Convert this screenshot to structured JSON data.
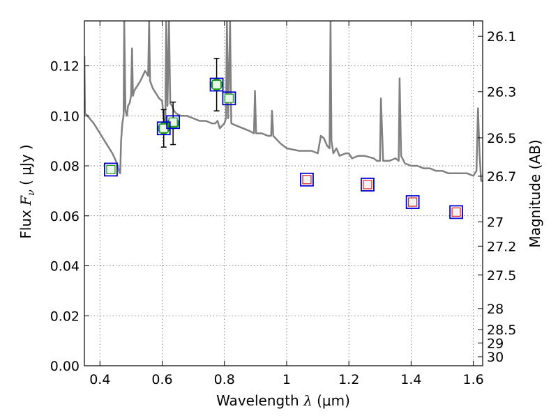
{
  "chart_data": {
    "type": "scatter",
    "xlabel_text": "Wavelength",
    "xlabel_symbol": "λ",
    "xlabel_unit": "(μm)",
    "ylabel_text": "Flux",
    "ylabel_symbol": "F",
    "ylabel_subscript": "ν",
    "ylabel_unit": "( μJy )",
    "y2label": "Magnitude (AB)",
    "xlim": [
      0.35,
      1.63
    ],
    "ylim": [
      0.0,
      0.138
    ],
    "xticks": [
      0.4,
      0.6,
      0.8,
      1.0,
      1.2,
      1.4,
      1.6
    ],
    "xtick_labels": [
      "0.4",
      "0.6",
      "0.8",
      "1",
      "1.2",
      "1.4",
      "1.6"
    ],
    "yticks": [
      0.0,
      0.02,
      0.04,
      0.06,
      0.08,
      0.1,
      0.12
    ],
    "ytick_labels": [
      "0.00",
      "0.02",
      "0.04",
      "0.06",
      "0.08",
      "0.10",
      "0.12"
    ],
    "magnitude_ticks": [
      {
        "label": "26.1",
        "mag": 26.1
      },
      {
        "label": "26.3",
        "mag": 26.3
      },
      {
        "label": "26.5",
        "mag": 26.5
      },
      {
        "label": "26.7",
        "mag": 26.7
      },
      {
        "label": "27",
        "mag": 27.0
      },
      {
        "label": "27.2",
        "mag": 27.2
      },
      {
        "label": "27.5",
        "mag": 27.5
      },
      {
        "label": "28",
        "mag": 28.0
      },
      {
        "label": "28.5",
        "mag": 28.5
      },
      {
        "label": "29",
        "mag": 29.0
      },
      {
        "label": "30",
        "mag": 30.0
      }
    ],
    "grid": true,
    "colors": {
      "model": "#808080",
      "observed": "#22bb22",
      "model_band_box": "#0000cc",
      "upper_limit": "#dd2222",
      "upper_limit_fill": "#f2f2f2",
      "green_small": "#229922",
      "errorbar": "#000000"
    },
    "series": [
      {
        "name": "observed",
        "marker": "filled-circle",
        "points": [
          {
            "x": 0.605,
            "y": 0.095,
            "yerr": 0.0075
          },
          {
            "x": 0.635,
            "y": 0.097,
            "yerr": 0.0085
          },
          {
            "x": 0.775,
            "y": 0.1125,
            "yerr": 0.0105
          }
        ]
      },
      {
        "name": "model-band-green",
        "marker": "small-square",
        "points": [
          {
            "x": 0.435,
            "y": 0.0785
          },
          {
            "x": 0.605,
            "y": 0.095
          },
          {
            "x": 0.635,
            "y": 0.0975
          },
          {
            "x": 0.775,
            "y": 0.1125
          },
          {
            "x": 0.815,
            "y": 0.107
          }
        ]
      },
      {
        "name": "upper-limit-red",
        "marker": "small-square",
        "points": [
          {
            "x": 1.065,
            "y": 0.0745
          },
          {
            "x": 1.26,
            "y": 0.0725
          },
          {
            "x": 1.405,
            "y": 0.0655
          },
          {
            "x": 1.545,
            "y": 0.0615
          }
        ]
      },
      {
        "name": "model-band-blue",
        "marker": "open-square",
        "points": [
          {
            "x": 0.435,
            "y": 0.0785
          },
          {
            "x": 0.605,
            "y": 0.095
          },
          {
            "x": 0.635,
            "y": 0.0975
          },
          {
            "x": 0.775,
            "y": 0.1125
          },
          {
            "x": 0.815,
            "y": 0.107
          },
          {
            "x": 1.065,
            "y": 0.0745
          },
          {
            "x": 1.26,
            "y": 0.0725
          },
          {
            "x": 1.405,
            "y": 0.0655
          },
          {
            "x": 1.545,
            "y": 0.0615
          }
        ]
      },
      {
        "name": "model-sed",
        "type": "line",
        "points": [
          [
            0.35,
            0.124
          ],
          [
            0.352,
            0.101
          ],
          [
            0.36,
            0.1
          ],
          [
            0.38,
            0.097
          ],
          [
            0.4,
            0.093
          ],
          [
            0.42,
            0.089
          ],
          [
            0.44,
            0.085
          ],
          [
            0.455,
            0.081
          ],
          [
            0.462,
            0.0775
          ],
          [
            0.465,
            0.077
          ],
          [
            0.468,
            0.09
          ],
          [
            0.472,
            0.097
          ],
          [
            0.476,
            0.1
          ],
          [
            0.478,
            0.138
          ],
          [
            0.482,
            0.102
          ],
          [
            0.487,
            0.1
          ],
          [
            0.49,
            0.104
          ],
          [
            0.495,
            0.105
          ],
          [
            0.5,
            0.108
          ],
          [
            0.503,
            0.127
          ],
          [
            0.506,
            0.108
          ],
          [
            0.51,
            0.11
          ],
          [
            0.52,
            0.112
          ],
          [
            0.53,
            0.114
          ],
          [
            0.545,
            0.118
          ],
          [
            0.555,
            0.116
          ],
          [
            0.558,
            0.138
          ],
          [
            0.561,
            0.114
          ],
          [
            0.57,
            0.111
          ],
          [
            0.58,
            0.109
          ],
          [
            0.59,
            0.107
          ],
          [
            0.6,
            0.106
          ],
          [
            0.605,
            0.098
          ],
          [
            0.61,
            0.095
          ],
          [
            0.613,
            0.138
          ],
          [
            0.617,
            0.104
          ],
          [
            0.622,
            0.138
          ],
          [
            0.626,
            0.105
          ],
          [
            0.632,
            0.104
          ],
          [
            0.638,
            0.102
          ],
          [
            0.645,
            0.101
          ],
          [
            0.66,
            0.1
          ],
          [
            0.68,
            0.1
          ],
          [
            0.7,
            0.099
          ],
          [
            0.72,
            0.098
          ],
          [
            0.74,
            0.098
          ],
          [
            0.76,
            0.097
          ],
          [
            0.77,
            0.097
          ],
          [
            0.778,
            0.098
          ],
          [
            0.785,
            0.095
          ],
          [
            0.8,
            0.097
          ],
          [
            0.805,
            0.099
          ],
          [
            0.808,
            0.138
          ],
          [
            0.812,
            0.099
          ],
          [
            0.818,
            0.138
          ],
          [
            0.822,
            0.097
          ],
          [
            0.84,
            0.096
          ],
          [
            0.86,
            0.095
          ],
          [
            0.88,
            0.094
          ],
          [
            0.895,
            0.093
          ],
          [
            0.898,
            0.11
          ],
          [
            0.902,
            0.093
          ],
          [
            0.92,
            0.093
          ],
          [
            0.94,
            0.092
          ],
          [
            0.95,
            0.092
          ],
          [
            0.953,
            0.102
          ],
          [
            0.957,
            0.092
          ],
          [
            0.98,
            0.089
          ],
          [
            1.0,
            0.087
          ],
          [
            1.04,
            0.086
          ],
          [
            1.06,
            0.086
          ],
          [
            1.08,
            0.086
          ],
          [
            1.1,
            0.085
          ],
          [
            1.11,
            0.092
          ],
          [
            1.12,
            0.091
          ],
          [
            1.13,
            0.088
          ],
          [
            1.138,
            0.087
          ],
          [
            1.141,
            0.138
          ],
          [
            1.144,
            0.09
          ],
          [
            1.15,
            0.085
          ],
          [
            1.16,
            0.087
          ],
          [
            1.17,
            0.084
          ],
          [
            1.19,
            0.085
          ],
          [
            1.2,
            0.085
          ],
          [
            1.21,
            0.083
          ],
          [
            1.23,
            0.084
          ],
          [
            1.25,
            0.084
          ],
          [
            1.28,
            0.083
          ],
          [
            1.29,
            0.082
          ],
          [
            1.3,
            0.082
          ],
          [
            1.303,
            0.107
          ],
          [
            1.31,
            0.082
          ],
          [
            1.33,
            0.082
          ],
          [
            1.35,
            0.083
          ],
          [
            1.36,
            0.082
          ],
          [
            1.363,
            0.115
          ],
          [
            1.368,
            0.084
          ],
          [
            1.38,
            0.081
          ],
          [
            1.4,
            0.08
          ],
          [
            1.42,
            0.08
          ],
          [
            1.44,
            0.079
          ],
          [
            1.46,
            0.079
          ],
          [
            1.48,
            0.078
          ],
          [
            1.5,
            0.078
          ],
          [
            1.52,
            0.077
          ],
          [
            1.55,
            0.077
          ],
          [
            1.58,
            0.077
          ],
          [
            1.6,
            0.076
          ],
          [
            1.61,
            0.078
          ],
          [
            1.615,
            0.103
          ],
          [
            1.62,
            0.085
          ],
          [
            1.625,
            0.074
          ],
          [
            1.63,
            0.074
          ]
        ]
      }
    ]
  }
}
